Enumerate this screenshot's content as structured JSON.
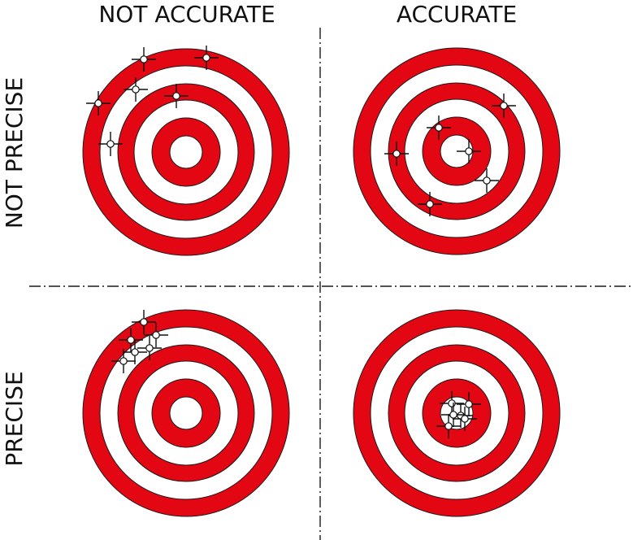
{
  "labels": {
    "col_not_accurate": "NOT ACCURATE",
    "col_accurate": "ACCURATE",
    "row_not_precise": "NOT PRECISE",
    "row_precise": "PRECISE"
  },
  "colors": {
    "ring_red": "#e30613",
    "ring_white": "#ffffff",
    "outline": "#1a1a1a"
  },
  "targets": [
    {
      "id": "not-accurate-not-precise",
      "accurate": false,
      "precise": false,
      "shots": 6
    },
    {
      "id": "accurate-not-precise",
      "accurate": true,
      "precise": false,
      "shots": 6
    },
    {
      "id": "not-accurate-precise",
      "accurate": false,
      "precise": true,
      "shots": 6
    },
    {
      "id": "accurate-precise",
      "accurate": true,
      "precise": true,
      "shots": 6
    }
  ]
}
